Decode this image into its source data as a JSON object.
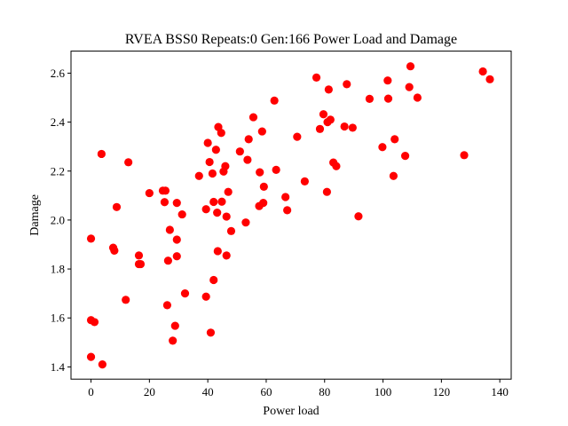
{
  "chart_data": {
    "type": "scatter",
    "title": "RVEA BSS0 Repeats:0 Gen:166 Power Load and Damage",
    "xlabel": "Power load",
    "ylabel": "Damage",
    "xlim": [
      -6.85,
      143.9
    ],
    "ylim": [
      1.35,
      2.69
    ],
    "xticks": [
      0,
      20,
      40,
      60,
      80,
      100,
      120,
      140
    ],
    "xtick_labels": [
      "0",
      "20",
      "40",
      "60",
      "80",
      "100",
      "120",
      "140"
    ],
    "yticks": [
      1.4,
      1.6,
      1.8,
      2.0,
      2.2,
      2.4,
      2.6
    ],
    "ytick_labels": [
      "1.4",
      "1.6",
      "1.8",
      "2.0",
      "2.2",
      "2.4",
      "2.6"
    ],
    "grid": false,
    "marker_color": "#ff0000",
    "points": [
      [
        0.0,
        1.924
      ],
      [
        0.0,
        1.591
      ],
      [
        1.2,
        1.583
      ],
      [
        0.0,
        1.441
      ],
      [
        3.9,
        1.41
      ],
      [
        3.6,
        2.27
      ],
      [
        7.6,
        1.887
      ],
      [
        8.0,
        1.875
      ],
      [
        8.8,
        2.053
      ],
      [
        11.9,
        1.674
      ],
      [
        12.8,
        2.236
      ],
      [
        16.4,
        1.855
      ],
      [
        16.4,
        1.82
      ],
      [
        17.0,
        1.82
      ],
      [
        20.0,
        2.11
      ],
      [
        24.6,
        2.12
      ],
      [
        25.5,
        2.12
      ],
      [
        25.2,
        2.073
      ],
      [
        26.1,
        1.652
      ],
      [
        26.4,
        1.834
      ],
      [
        27.0,
        1.96
      ],
      [
        28.0,
        1.507
      ],
      [
        28.8,
        1.568
      ],
      [
        29.4,
        2.07
      ],
      [
        29.4,
        1.92
      ],
      [
        29.4,
        1.852
      ],
      [
        31.2,
        2.023
      ],
      [
        32.2,
        1.7
      ],
      [
        37.0,
        2.18
      ],
      [
        39.4,
        2.044
      ],
      [
        39.4,
        1.687
      ],
      [
        40.0,
        2.315
      ],
      [
        40.6,
        2.237
      ],
      [
        41.0,
        1.54
      ],
      [
        41.6,
        2.19
      ],
      [
        42.0,
        2.074
      ],
      [
        42.0,
        1.755
      ],
      [
        42.8,
        2.287
      ],
      [
        43.2,
        2.03
      ],
      [
        43.4,
        1.873
      ],
      [
        43.6,
        2.38
      ],
      [
        44.6,
        2.356
      ],
      [
        44.8,
        2.075
      ],
      [
        45.4,
        2.198
      ],
      [
        46.0,
        2.22
      ],
      [
        46.4,
        1.855
      ],
      [
        46.4,
        2.014
      ],
      [
        47.0,
        2.115
      ],
      [
        48.0,
        1.955
      ],
      [
        51.0,
        2.28
      ],
      [
        53.0,
        1.99
      ],
      [
        53.6,
        2.246
      ],
      [
        54.0,
        2.33
      ],
      [
        55.6,
        2.42
      ],
      [
        57.6,
        2.057
      ],
      [
        57.8,
        2.195
      ],
      [
        58.6,
        2.362
      ],
      [
        59.0,
        2.07
      ],
      [
        59.2,
        2.136
      ],
      [
        62.8,
        2.488
      ],
      [
        63.4,
        2.205
      ],
      [
        66.6,
        2.094
      ],
      [
        67.2,
        2.04
      ],
      [
        70.6,
        2.34
      ],
      [
        73.2,
        2.158
      ],
      [
        77.2,
        2.582
      ],
      [
        78.4,
        2.372
      ],
      [
        79.6,
        2.432
      ],
      [
        80.8,
        2.115
      ],
      [
        81.0,
        2.4
      ],
      [
        81.4,
        2.533
      ],
      [
        82.0,
        2.41
      ],
      [
        83.0,
        2.235
      ],
      [
        84.0,
        2.22
      ],
      [
        86.8,
        2.382
      ],
      [
        87.6,
        2.555
      ],
      [
        89.6,
        2.377
      ],
      [
        91.6,
        2.015
      ],
      [
        95.4,
        2.495
      ],
      [
        99.8,
        2.298
      ],
      [
        101.6,
        2.57
      ],
      [
        101.8,
        2.496
      ],
      [
        103.6,
        2.18
      ],
      [
        104.0,
        2.33
      ],
      [
        107.6,
        2.262
      ],
      [
        109.0,
        2.543
      ],
      [
        109.4,
        2.628
      ],
      [
        111.8,
        2.5
      ],
      [
        127.8,
        2.265
      ],
      [
        134.2,
        2.607
      ],
      [
        136.6,
        2.575
      ]
    ]
  }
}
